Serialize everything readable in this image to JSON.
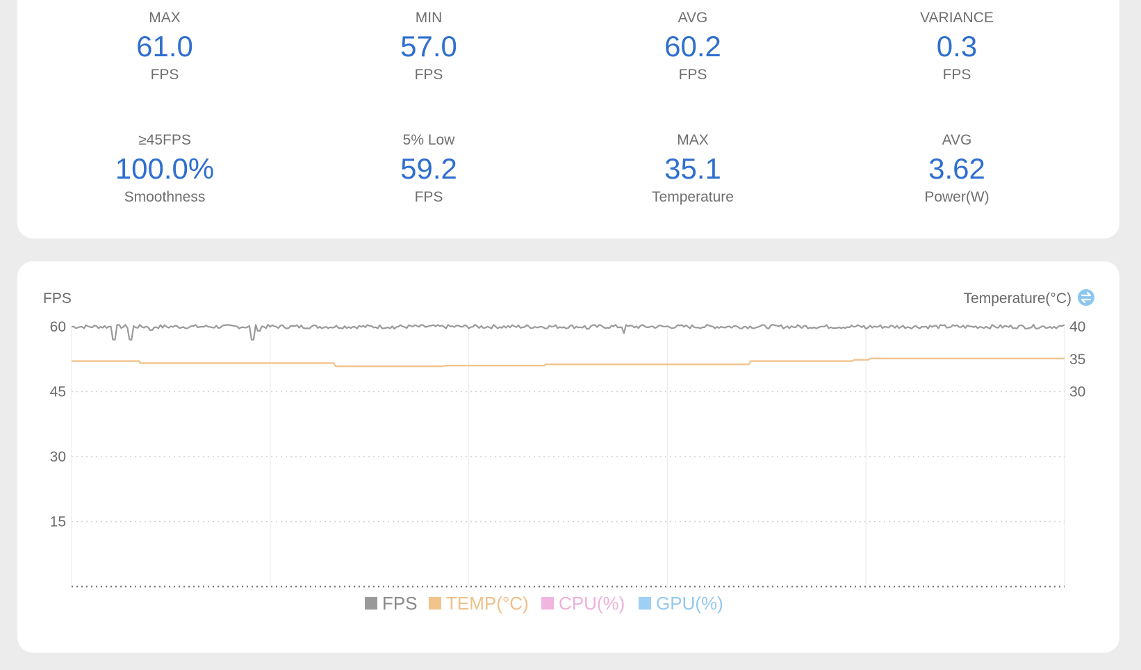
{
  "stats": [
    {
      "label": "MAX",
      "value": "61.0",
      "unit": "FPS"
    },
    {
      "label": "MIN",
      "value": "57.0",
      "unit": "FPS"
    },
    {
      "label": "AVG",
      "value": "60.2",
      "unit": "FPS"
    },
    {
      "label": "VARIANCE",
      "value": "0.3",
      "unit": "FPS"
    },
    {
      "label": "≥45FPS",
      "value": "100.0%",
      "unit": "Smoothness"
    },
    {
      "label": "5% Low",
      "value": "59.2",
      "unit": "FPS"
    },
    {
      "label": "MAX",
      "value": "35.1",
      "unit": "Temperature"
    },
    {
      "label": "AVG",
      "value": "3.62",
      "unit": "Power(W)"
    }
  ],
  "chart": {
    "left_axis_title": "FPS",
    "right_axis_title": "Temperature(°C)",
    "switch_icon": "swap-axis-icon",
    "colors": {
      "fps": "#9a9a9a",
      "temp": "#f1c48c",
      "cpu": "#f0b6df",
      "gpu": "#9dd0f3",
      "switch": "#8cc6f0",
      "grid": "#cfcfcf"
    }
  },
  "chart_data": {
    "type": "line",
    "left_axis": {
      "ticks": [
        60,
        45,
        30,
        15
      ],
      "ylim": [
        0,
        60
      ]
    },
    "right_axis": {
      "ticks": [
        40,
        35,
        30
      ],
      "ylim": [
        0,
        40
      ]
    },
    "x_range": [
      0,
      100
    ],
    "series": [
      {
        "name": "FPS",
        "axis": "left",
        "baseline": 60,
        "dips": [
          {
            "x": 4.2,
            "y": 57
          },
          {
            "x": 6.0,
            "y": 57
          },
          {
            "x": 8.0,
            "y": 59.2
          },
          {
            "x": 18.3,
            "y": 57
          },
          {
            "x": 18.9,
            "y": 59
          },
          {
            "x": 32.5,
            "y": 59.5
          },
          {
            "x": 52.0,
            "y": 59.5
          },
          {
            "x": 55.6,
            "y": 58.5
          },
          {
            "x": 80.0,
            "y": 59.5
          }
        ]
      },
      {
        "name": "TEMP(°C)",
        "axis": "right",
        "points": [
          [
            0,
            34.7
          ],
          [
            6.8,
            34.7
          ],
          [
            6.9,
            34.4
          ],
          [
            26.4,
            34.4
          ],
          [
            26.6,
            33.9
          ],
          [
            37.4,
            33.9
          ],
          [
            37.6,
            34.0
          ],
          [
            47.6,
            34.0
          ],
          [
            47.8,
            34.2
          ],
          [
            68.2,
            34.2
          ],
          [
            68.4,
            34.7
          ],
          [
            78.6,
            34.7
          ],
          [
            78.8,
            34.9
          ],
          [
            80.2,
            34.9
          ],
          [
            80.4,
            35.1
          ],
          [
            100,
            35.1
          ]
        ]
      },
      {
        "name": "CPU(%)",
        "axis": "left",
        "points": []
      },
      {
        "name": "GPU(%)",
        "axis": "left",
        "points": []
      }
    ]
  }
}
